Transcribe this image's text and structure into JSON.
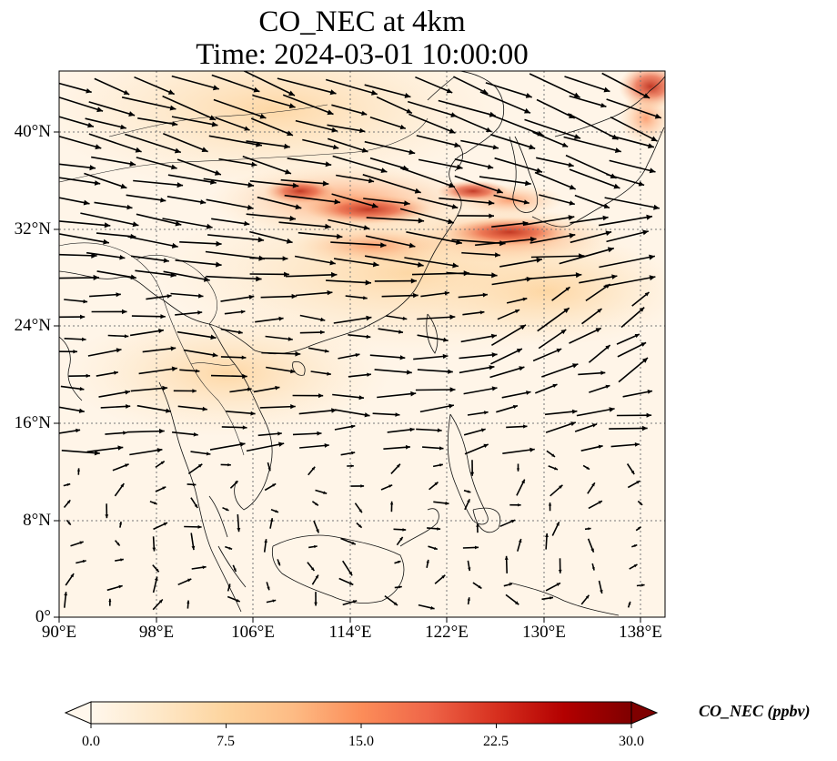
{
  "title": {
    "line1": "CO_NEC at 4km",
    "line2": "Time: 2024-03-01 10:00:00"
  },
  "map": {
    "projection": "PlateCarree",
    "lon_range": [
      89.5,
      140.0
    ],
    "lat_range": [
      0,
      45
    ],
    "lon_ticks": [
      {
        "value": 90,
        "label": "90°E"
      },
      {
        "value": 98,
        "label": "98°E"
      },
      {
        "value": 106,
        "label": "106°E"
      },
      {
        "value": 114,
        "label": "114°E"
      },
      {
        "value": 122,
        "label": "122°E"
      },
      {
        "value": 130,
        "label": "130°E"
      },
      {
        "value": 138,
        "label": "138°E"
      }
    ],
    "lat_ticks": [
      {
        "value": 0,
        "label": "0°"
      },
      {
        "value": 8,
        "label": "8°N"
      },
      {
        "value": 16,
        "label": "16°N"
      },
      {
        "value": 24,
        "label": "24°N"
      },
      {
        "value": 32,
        "label": "32°N"
      },
      {
        "value": 40,
        "label": "40°N"
      }
    ],
    "gridlines": "dotted",
    "field_colormap": "OrRd",
    "wind_vectors": "black arrows"
  },
  "colorbar": {
    "label": "CO_NEC (ppbv)",
    "vmin": 0.0,
    "vmax": 30.0,
    "ticks": [
      "0.0",
      "7.5",
      "15.0",
      "22.5",
      "30.0"
    ],
    "colors": [
      "#fff7ec",
      "#fee8c8",
      "#fdd49e",
      "#fdbb84",
      "#fc8d59",
      "#ef6548",
      "#d7301f",
      "#b30000",
      "#7f0000"
    ],
    "extend": "both"
  }
}
